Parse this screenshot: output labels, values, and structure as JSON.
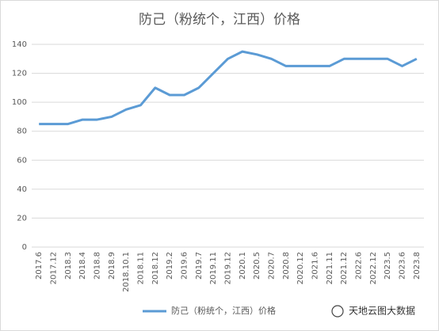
{
  "chart_data": {
    "type": "line",
    "title": "防己（粉统个，江西）价格",
    "categories": [
      "2017.6",
      "2017.12",
      "2018.3",
      "2018.4",
      "2018.8",
      "2018.9",
      "2018.10.1",
      "2018.11",
      "2018.12",
      "2019.2",
      "2019.6",
      "2019.7",
      "2019.11",
      "2019.12",
      "2020.1",
      "2020.5",
      "2020.7",
      "2020.8",
      "2020.12",
      "2021.6",
      "2021.11",
      "2021.12",
      "2022.6",
      "2022.12",
      "2023.5",
      "2023.6",
      "2023.8"
    ],
    "series": [
      {
        "name": "防己（粉统个，江西）价格",
        "color": "#5b9bd5",
        "values": [
          85,
          85,
          85,
          88,
          88,
          90,
          95,
          98,
          110,
          105,
          105,
          110,
          120,
          130,
          135,
          133,
          130,
          125,
          125,
          125,
          125,
          130,
          130,
          130,
          130,
          125,
          130
        ]
      }
    ],
    "ylim": [
      0,
      140
    ],
    "yticks": [
      0,
      20,
      40,
      60,
      80,
      100,
      120,
      140
    ],
    "grid": true,
    "legend": "bottom",
    "watermark": "天地云图大数据"
  }
}
